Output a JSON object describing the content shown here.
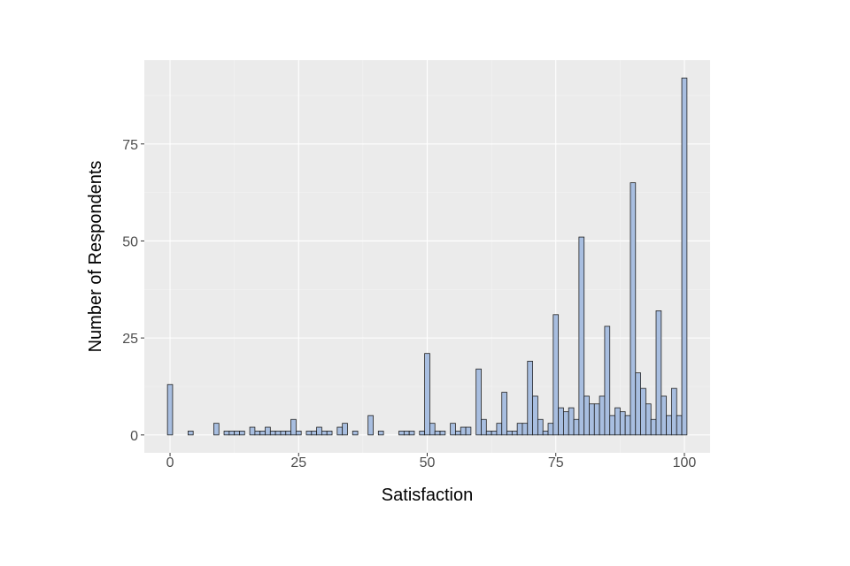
{
  "chart_data": {
    "type": "bar",
    "title": "",
    "xlabel": "Satisfaction",
    "ylabel": "Number of Respondents",
    "x": [
      0,
      1,
      2,
      3,
      4,
      5,
      6,
      7,
      8,
      9,
      10,
      11,
      12,
      13,
      14,
      15,
      16,
      17,
      18,
      19,
      20,
      21,
      22,
      23,
      24,
      25,
      26,
      27,
      28,
      29,
      30,
      31,
      32,
      33,
      34,
      35,
      36,
      37,
      38,
      39,
      40,
      41,
      42,
      43,
      44,
      45,
      46,
      47,
      48,
      49,
      50,
      51,
      52,
      53,
      54,
      55,
      56,
      57,
      58,
      59,
      60,
      61,
      62,
      63,
      64,
      65,
      66,
      67,
      68,
      69,
      70,
      71,
      72,
      73,
      74,
      75,
      76,
      77,
      78,
      79,
      80,
      81,
      82,
      83,
      84,
      85,
      86,
      87,
      88,
      89,
      90,
      91,
      92,
      93,
      94,
      95,
      96,
      97,
      98,
      99,
      100
    ],
    "values": [
      13,
      0,
      0,
      0,
      1,
      0,
      0,
      0,
      0,
      3,
      0,
      1,
      1,
      1,
      1,
      0,
      2,
      1,
      1,
      2,
      1,
      1,
      1,
      1,
      4,
      1,
      0,
      1,
      1,
      2,
      1,
      1,
      0,
      2,
      3,
      0,
      1,
      0,
      0,
      5,
      0,
      1,
      0,
      0,
      0,
      1,
      1,
      1,
      0,
      1,
      21,
      3,
      1,
      1,
      0,
      3,
      1,
      2,
      2,
      0,
      17,
      4,
      1,
      1,
      3,
      11,
      1,
      1,
      3,
      3,
      19,
      10,
      4,
      1,
      3,
      31,
      7,
      6,
      7,
      4,
      51,
      10,
      8,
      8,
      10,
      28,
      5,
      7,
      6,
      5,
      65,
      16,
      12,
      8,
      4,
      32,
      10,
      5,
      12,
      5,
      92
    ],
    "xlim": [
      -5,
      105
    ],
    "ylim": [
      -4.6,
      96.6
    ],
    "x_ticks": [
      "0",
      "25",
      "50",
      "75",
      "100"
    ],
    "y_ticks": [
      "0",
      "25",
      "50",
      "75"
    ],
    "grid": true,
    "legend": "none",
    "colors": {
      "panel": "#ebebeb",
      "grid_major": "#ffffff",
      "grid_minor": "#f4f4f4",
      "bar_fill": "#a8bee0",
      "bar_edge": "#1f1f1f",
      "tick_text": "#4d4d4d",
      "axis_title": "#000000"
    }
  }
}
